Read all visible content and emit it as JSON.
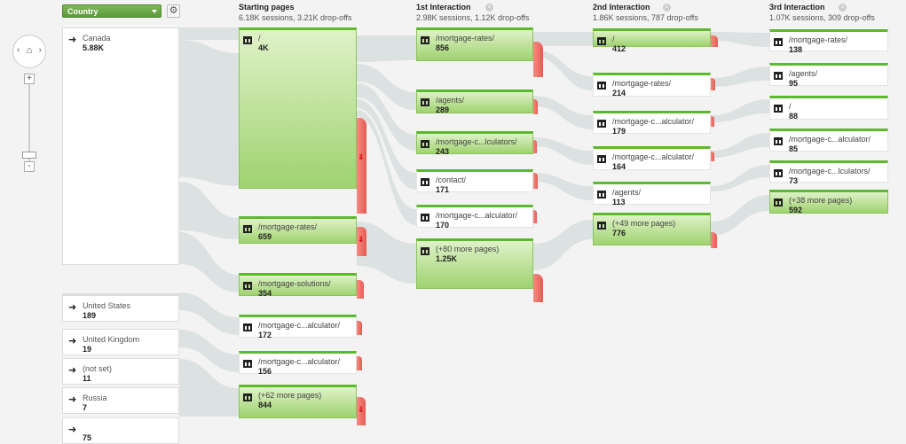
{
  "toolbar": {
    "dimension_label": "Country",
    "settings_icon": "gear-icon"
  },
  "zoom": {
    "plus_label": "+",
    "minus_label": "-",
    "left_label": "‹",
    "right_label": "›"
  },
  "columns": [
    {
      "title": "Starting pages",
      "subtitle": "6.18K sessions, 3.21K drop-offs",
      "closable": false
    },
    {
      "title": "1st Interaction",
      "subtitle": "2.98K sessions, 1.12K drop-offs",
      "closable": true
    },
    {
      "title": "2nd Interaction",
      "subtitle": "1.86K sessions, 787 drop-offs",
      "closable": true
    },
    {
      "title": "3rd Interaction",
      "subtitle": "1.07K sessions, 309 drop-offs",
      "closable": true
    }
  ],
  "close_label": "×",
  "countries": [
    {
      "name": "Canada",
      "value": "5.88K"
    },
    {
      "name": "United States",
      "value": "189"
    },
    {
      "name": "United Kingdom",
      "value": "19"
    },
    {
      "name": "(not set)",
      "value": "11"
    },
    {
      "name": "Russia",
      "value": "7"
    },
    {
      "name": "",
      "value": "75"
    }
  ],
  "starting_pages": [
    {
      "name": "/",
      "value": "4K"
    },
    {
      "name": "/mortgage-rates/",
      "value": "659"
    },
    {
      "name": "/mortgage-solutions/",
      "value": "354"
    },
    {
      "name": "/mortgage-c...alculator/",
      "value": "172"
    },
    {
      "name": "/mortgage-c...alculator/",
      "value": "156"
    },
    {
      "name": "(+62 more pages)",
      "value": "844"
    }
  ],
  "interaction_1": [
    {
      "name": "/mortgage-rates/",
      "value": "856"
    },
    {
      "name": "/agents/",
      "value": "289"
    },
    {
      "name": "/mortgage-c...lculators/",
      "value": "243"
    },
    {
      "name": "/contact/",
      "value": "171"
    },
    {
      "name": "/mortgage-c...alculator/",
      "value": "170"
    },
    {
      "name": "(+80 more pages)",
      "value": "1.25K"
    }
  ],
  "interaction_2": [
    {
      "name": "/",
      "value": "412"
    },
    {
      "name": "/mortgage-rates/",
      "value": "214"
    },
    {
      "name": "/mortgage-c...alculator/",
      "value": "179"
    },
    {
      "name": "/mortgage-c...alculator/",
      "value": "164"
    },
    {
      "name": "/agents/",
      "value": "113"
    },
    {
      "name": "(+49 more pages)",
      "value": "776"
    }
  ],
  "interaction_3": [
    {
      "name": "/mortgage-rates/",
      "value": "138"
    },
    {
      "name": "/agents/",
      "value": "95"
    },
    {
      "name": "/",
      "value": "88"
    },
    {
      "name": "/mortgage-c...alculator/",
      "value": "85"
    },
    {
      "name": "/mortgage-c...lculators/",
      "value": "73"
    },
    {
      "name": "(+38 more pages)",
      "value": "592"
    }
  ],
  "colors": {
    "node_green": "#9fd26f",
    "node_top": "#5cb82c",
    "dropoff_red": "#e45c52",
    "flow_gray": "#d4dcdc"
  }
}
